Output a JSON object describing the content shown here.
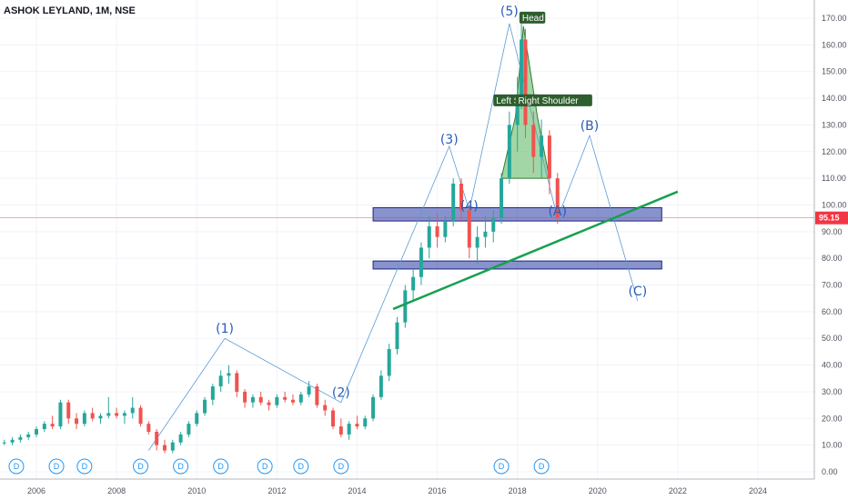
{
  "title": "ASHOK LEYLAND, 1M, NSE",
  "chart_data": {
    "type": "candlestick",
    "ylim": [
      -2,
      175
    ],
    "xlim": [
      2005.0,
      2025.0
    ],
    "y_ticks": [
      "0.00",
      "10.00",
      "20.00",
      "30.00",
      "40.00",
      "50.00",
      "60.00",
      "70.00",
      "80.00",
      "90.00",
      "100.00",
      "110.00",
      "120.00",
      "130.00",
      "140.00",
      "150.00",
      "160.00",
      "170.00"
    ],
    "x_ticks": [
      "2006",
      "2008",
      "2010",
      "2012",
      "2014",
      "2016",
      "2018",
      "2020",
      "2022",
      "2024"
    ],
    "last_price": 95.15,
    "last_price_label": "95.15",
    "price_line_color": "#f23645",
    "up_color": "#26a69a",
    "down_color": "#ef5350",
    "candles": [
      [
        2005.0,
        12,
        13,
        10,
        11
      ],
      [
        2005.2,
        11,
        12,
        10,
        11
      ],
      [
        2005.4,
        11,
        13,
        10,
        12
      ],
      [
        2005.6,
        12,
        14,
        11,
        13
      ],
      [
        2005.8,
        13,
        15,
        12,
        14
      ],
      [
        2006.0,
        14,
        17,
        13,
        16
      ],
      [
        2006.2,
        16,
        19,
        15,
        18
      ],
      [
        2006.4,
        18,
        21,
        16,
        17
      ],
      [
        2006.6,
        17,
        27,
        16,
        26
      ],
      [
        2006.8,
        26,
        27,
        18,
        20
      ],
      [
        2007.0,
        20,
        22,
        16,
        18
      ],
      [
        2007.2,
        18,
        23,
        17,
        22
      ],
      [
        2007.4,
        22,
        24,
        19,
        20
      ],
      [
        2007.6,
        20,
        22,
        18,
        21
      ],
      [
        2007.8,
        21,
        28,
        20,
        22
      ],
      [
        2008.0,
        22,
        24,
        20,
        21
      ],
      [
        2008.2,
        21,
        23,
        18,
        22
      ],
      [
        2008.4,
        22,
        28,
        20,
        24
      ],
      [
        2008.6,
        24,
        25,
        17,
        18
      ],
      [
        2008.8,
        18,
        19,
        14,
        15
      ],
      [
        2009.0,
        15,
        16,
        8,
        10
      ],
      [
        2009.2,
        10,
        12,
        7,
        8
      ],
      [
        2009.4,
        8,
        12,
        7,
        11
      ],
      [
        2009.6,
        11,
        15,
        10,
        14
      ],
      [
        2009.8,
        14,
        19,
        13,
        18
      ],
      [
        2010.0,
        18,
        23,
        17,
        22
      ],
      [
        2010.2,
        22,
        28,
        21,
        27
      ],
      [
        2010.4,
        27,
        33,
        25,
        32
      ],
      [
        2010.6,
        32,
        38,
        30,
        36
      ],
      [
        2010.8,
        36,
        40,
        33,
        37
      ],
      [
        2011.0,
        37,
        38,
        28,
        30
      ],
      [
        2011.2,
        30,
        31,
        24,
        26
      ],
      [
        2011.4,
        26,
        29,
        24,
        28
      ],
      [
        2011.6,
        28,
        30,
        25,
        26
      ],
      [
        2011.8,
        26,
        27,
        23,
        25
      ],
      [
        2012.0,
        25,
        29,
        24,
        28
      ],
      [
        2012.2,
        28,
        30,
        26,
        27
      ],
      [
        2012.4,
        27,
        29,
        25,
        26
      ],
      [
        2012.6,
        26,
        30,
        25,
        29
      ],
      [
        2012.8,
        29,
        34,
        28,
        32
      ],
      [
        2013.0,
        32,
        33,
        24,
        25
      ],
      [
        2013.2,
        25,
        27,
        21,
        23
      ],
      [
        2013.4,
        23,
        24,
        16,
        17
      ],
      [
        2013.6,
        17,
        20,
        13,
        14
      ],
      [
        2013.8,
        14,
        19,
        12,
        18
      ],
      [
        2014.0,
        18,
        21,
        16,
        17
      ],
      [
        2014.2,
        17,
        21,
        16,
        20
      ],
      [
        2014.4,
        20,
        29,
        19,
        28
      ],
      [
        2014.6,
        28,
        38,
        27,
        36
      ],
      [
        2014.8,
        36,
        48,
        34,
        46
      ],
      [
        2015.0,
        46,
        58,
        44,
        56
      ],
      [
        2015.2,
        56,
        70,
        54,
        68
      ],
      [
        2015.4,
        68,
        76,
        64,
        73
      ],
      [
        2015.6,
        73,
        86,
        70,
        84
      ],
      [
        2015.8,
        84,
        96,
        80,
        92
      ],
      [
        2016.0,
        92,
        97,
        84,
        88
      ],
      [
        2016.2,
        88,
        96,
        86,
        94
      ],
      [
        2016.4,
        94,
        110,
        92,
        108
      ],
      [
        2016.6,
        108,
        110,
        94,
        98
      ],
      [
        2016.8,
        98,
        100,
        80,
        84
      ],
      [
        2017.0,
        84,
        92,
        78,
        88
      ],
      [
        2017.2,
        88,
        96,
        84,
        90
      ],
      [
        2017.4,
        90,
        98,
        86,
        95
      ],
      [
        2017.6,
        95,
        112,
        93,
        110
      ],
      [
        2017.8,
        110,
        135,
        108,
        130
      ],
      [
        2018.0,
        130,
        148,
        120,
        140
      ],
      [
        2018.1,
        140,
        168,
        136,
        162
      ],
      [
        2018.2,
        162,
        166,
        125,
        130
      ],
      [
        2018.4,
        130,
        135,
        112,
        118
      ],
      [
        2018.6,
        118,
        132,
        110,
        126
      ],
      [
        2018.8,
        126,
        128,
        104,
        110
      ],
      [
        2019.0,
        110,
        112,
        93,
        95
      ]
    ]
  },
  "waves": [
    {
      "label": "(1)",
      "x": 2010.7,
      "y": 50
    },
    {
      "label": "(2)",
      "x": 2013.6,
      "y": 26
    },
    {
      "label": "(3)",
      "x": 2016.3,
      "y": 121
    },
    {
      "label": "(4)",
      "x": 2016.8,
      "y": 96
    },
    {
      "label": "(5)",
      "x": 2017.8,
      "y": 169
    },
    {
      "label": "(A)",
      "x": 2019.0,
      "y": 94
    },
    {
      "label": "(B)",
      "x": 2019.8,
      "y": 126
    },
    {
      "label": "(C)",
      "x": 2021.0,
      "y": 64
    }
  ],
  "pattern_labels": {
    "head": "Head",
    "left_shoulder": "Left Sho",
    "right_shoulder": "Right Shoulder"
  },
  "dividend_label": "D",
  "dividend_x": [
    2005.5,
    2006.5,
    2007.2,
    2008.6,
    2009.6,
    2010.6,
    2011.7,
    2012.6,
    2013.6,
    2017.6,
    2018.6
  ],
  "zones": [
    {
      "name": "upper-zone",
      "y1": 94,
      "y2": 99,
      "x1": 2014.4,
      "x2": 2021.6,
      "color": "#3949ab"
    },
    {
      "name": "lower-zone",
      "y1": 76,
      "y2": 79,
      "x1": 2014.4,
      "x2": 2021.6,
      "color": "#3949ab"
    }
  ],
  "trendline": {
    "x1": 2014.9,
    "y1": 61,
    "x2": 2022.0,
    "y2": 105,
    "color": "#17a050"
  }
}
